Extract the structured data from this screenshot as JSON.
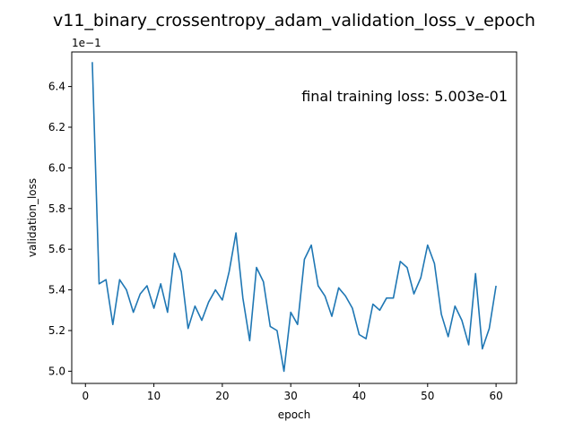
{
  "chart_data": {
    "type": "line",
    "title": "v11_binary_crossentropy_adam_validation_loss_v_epoch",
    "xlabel": "epoch",
    "ylabel": "validation_loss",
    "offset_label": "1e−1",
    "annotation": "final training loss: 5.003e-01",
    "xlim": [
      -2,
      63
    ],
    "ylim": [
      4.94,
      6.57
    ],
    "xticks": [
      0,
      10,
      20,
      30,
      40,
      50,
      60
    ],
    "yticks": [
      5.0,
      5.2,
      5.4,
      5.6,
      5.8,
      6.0,
      6.2,
      6.4
    ],
    "ytick_labels": [
      "5.0",
      "5.2",
      "5.4",
      "5.6",
      "5.8",
      "6.0",
      "6.2",
      "6.4"
    ],
    "grid": false,
    "line_color": "#1f77b4",
    "series": [
      {
        "x": [
          1,
          2,
          3,
          4,
          5,
          6,
          7,
          8,
          9,
          10,
          11,
          12,
          13,
          14,
          15,
          16,
          17,
          18,
          19,
          20,
          21,
          22,
          23,
          24,
          25,
          26,
          27,
          28,
          29,
          30,
          31,
          32,
          33,
          34,
          35,
          36,
          37,
          38,
          39,
          40,
          41,
          42,
          43,
          44,
          45,
          46,
          47,
          48,
          49,
          50,
          51,
          52,
          53,
          54,
          55,
          56,
          57,
          58,
          59,
          60
        ],
        "values": [
          6.52,
          5.43,
          5.45,
          5.23,
          5.45,
          5.4,
          5.29,
          5.38,
          5.42,
          5.31,
          5.43,
          5.29,
          5.58,
          5.49,
          5.21,
          5.32,
          5.25,
          5.34,
          5.4,
          5.35,
          5.49,
          5.68,
          5.36,
          5.15,
          5.51,
          5.44,
          5.22,
          5.2,
          5.0,
          5.29,
          5.23,
          5.55,
          5.62,
          5.42,
          5.37,
          5.27,
          5.41,
          5.37,
          5.31,
          5.18,
          5.16,
          5.33,
          5.3,
          5.36,
          5.36,
          5.54,
          5.51,
          5.38,
          5.46,
          5.62,
          5.53,
          5.28,
          5.17,
          5.32,
          5.25,
          5.13,
          5.48,
          5.11,
          5.21,
          5.42
        ]
      }
    ]
  }
}
